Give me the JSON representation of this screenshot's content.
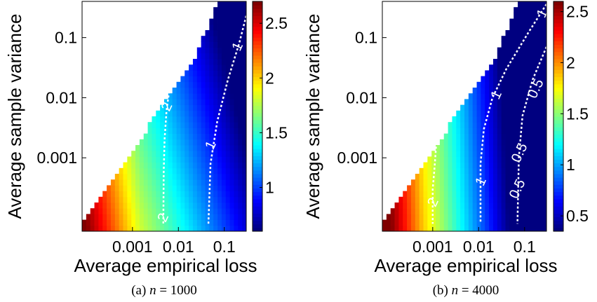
{
  "figure": {
    "panels": [
      {
        "caption_prefix": "(a) ",
        "caption_var": "n",
        "caption_eq": " = 1000"
      },
      {
        "caption_prefix": "(b) ",
        "caption_var": "n",
        "caption_eq": " = 4000"
      }
    ]
  },
  "chart_data": [
    {
      "type": "heatmap",
      "subtitle": "(a) n = 1000",
      "xlabel": "Average empirical loss",
      "ylabel": "Average sample variance",
      "x_scale": "log",
      "y_scale": "log",
      "xlim": [
        8e-05,
        0.3
      ],
      "ylim": [
        6e-05,
        0.4
      ],
      "x_ticks": [
        0.001,
        0.01,
        0.1
      ],
      "x_tick_labels": [
        "0.001",
        "0.01",
        "0.1"
      ],
      "y_ticks": [
        0.001,
        0.01,
        0.1
      ],
      "y_tick_labels": [
        "0.001",
        "0.01",
        "0.1"
      ],
      "colormap": "jet",
      "colorbar": {
        "min": 0.6,
        "max": 2.7,
        "ticks": [
          1,
          1.5,
          2,
          2.5
        ],
        "tick_labels": [
          "1",
          "1.5",
          "2",
          "2.5"
        ]
      },
      "contours": [
        {
          "level": 2,
          "label": "2",
          "points": [
            [
              0.0065,
              0.015
            ],
            [
              0.0055,
              0.006
            ],
            [
              0.005,
              0.002
            ],
            [
              0.0048,
              0.0006
            ],
            [
              0.0047,
              8e-05
            ]
          ],
          "label_at": [
            [
              0.0058,
              0.007
            ],
            [
              0.0048,
              0.0001
            ]
          ]
        },
        {
          "level": 1,
          "label": "1",
          "points": [
            [
              0.3,
              0.23
            ],
            [
              0.21,
              0.08
            ],
            [
              0.12,
              0.02
            ],
            [
              0.07,
              0.004
            ],
            [
              0.05,
              0.0008
            ],
            [
              0.045,
              8e-05
            ]
          ],
          "label_at": [
            [
              0.2,
              0.07
            ],
            [
              0.052,
              0.0016
            ]
          ]
        }
      ],
      "grid_rows": 40,
      "grid_cols": 40
    },
    {
      "type": "heatmap",
      "subtitle": "(b) n = 4000",
      "xlabel": "Average empirical loss",
      "ylabel": "Average sample variance",
      "x_scale": "log",
      "y_scale": "log",
      "xlim": [
        8e-05,
        0.3
      ],
      "ylim": [
        6e-05,
        0.4
      ],
      "x_ticks": [
        0.001,
        0.01,
        0.1
      ],
      "x_tick_labels": [
        "0.001",
        "0.01",
        "0.1"
      ],
      "y_ticks": [
        0.001,
        0.01,
        0.1
      ],
      "y_tick_labels": [
        "0.001",
        "0.01",
        "0.1"
      ],
      "colormap": "jet",
      "colorbar": {
        "min": 0.35,
        "max": 2.6,
        "ticks": [
          0.5,
          1,
          1.5,
          2,
          2.5
        ],
        "tick_labels": [
          "0.5",
          "1",
          "1.5",
          "2",
          "2.5"
        ]
      },
      "contours": [
        {
          "level": 2,
          "label": "2",
          "points": [
            [
              0.0012,
              0.0018
            ],
            [
              0.0011,
              0.0007
            ],
            [
              0.001,
              0.0003
            ],
            [
              0.001,
              8e-05
            ]
          ],
          "label_at": [
            [
              0.00105,
              0.00018
            ]
          ]
        },
        {
          "level": 1,
          "label": "1",
          "points": [
            [
              0.3,
              0.36
            ],
            [
              0.12,
              0.12
            ],
            [
              0.04,
              0.03
            ],
            [
              0.02,
              0.01
            ],
            [
              0.013,
              0.003
            ],
            [
              0.011,
              0.0008
            ],
            [
              0.011,
              8e-05
            ]
          ],
          "label_at": [
            [
              0.25,
              0.25
            ],
            [
              0.025,
              0.011
            ],
            [
              0.0115,
              0.0004
            ]
          ]
        },
        {
          "level": 0.5,
          "label": "0.5",
          "points": [
            [
              0.3,
              0.07
            ],
            [
              0.15,
              0.02
            ],
            [
              0.09,
              0.005
            ],
            [
              0.075,
              0.001
            ],
            [
              0.07,
              8e-05
            ]
          ],
          "label_at": [
            [
              0.18,
              0.014
            ],
            [
              0.08,
              0.0012
            ],
            [
              0.072,
              0.0003
            ]
          ]
        }
      ],
      "grid_rows": 40,
      "grid_cols": 40
    }
  ]
}
